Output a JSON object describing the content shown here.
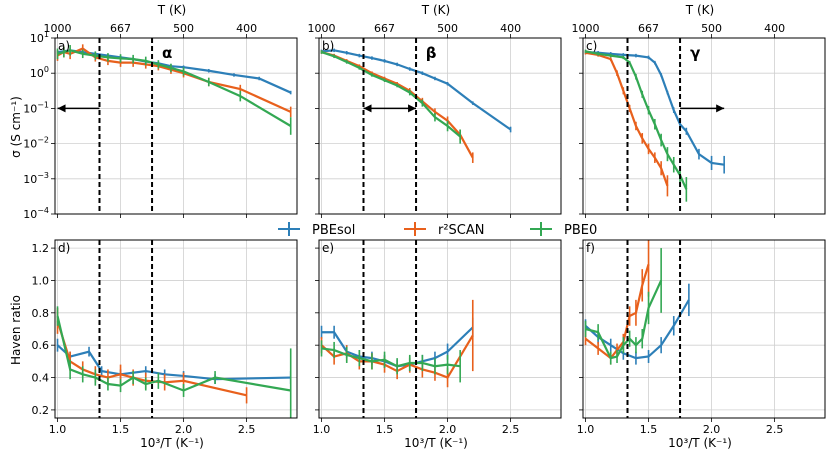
{
  "legend": [
    {
      "label": "PBEsol",
      "color": "#2d7fb8"
    },
    {
      "label": "r²SCAN",
      "color": "#e8601c"
    },
    {
      "label": "PBE0",
      "color": "#33a853"
    }
  ],
  "axis_text": {
    "top_xlabel": "T (K)",
    "bottom_xlabel": "10³/T (K⁻¹)",
    "top_ylabel": "σ (S cm⁻¹)",
    "bottom_ylabel": "Haven ratio"
  },
  "chart_data": [
    {
      "type": "line",
      "id": "a",
      "panel_label": "a)",
      "phase_label": "α",
      "row": "top",
      "col": 0,
      "xlim": [
        0.98,
        2.9
      ],
      "ylim": [
        -4,
        1
      ],
      "yscale": "log",
      "vlines": [
        1.333,
        1.75
      ],
      "arrow": {
        "from": 1.333,
        "to": 1.0,
        "y": -1
      },
      "top_ticks": [
        {
          "value": 1000,
          "pos": 1.0
        },
        {
          "value": 667,
          "pos": 1.5
        },
        {
          "value": 500,
          "pos": 2.0
        },
        {
          "value": 400,
          "pos": 2.5
        }
      ],
      "series": [
        {
          "name": "PBEsol",
          "x": [
            1.0,
            1.1,
            1.2,
            1.3,
            1.4,
            1.5,
            1.6,
            1.7,
            1.8,
            1.9,
            2.0,
            2.2,
            2.4,
            2.6,
            2.85
          ],
          "y": [
            0.6,
            0.65,
            0.6,
            0.55,
            0.5,
            0.45,
            0.4,
            0.33,
            0.28,
            0.2,
            0.17,
            0.07,
            -0.05,
            -0.15,
            -0.55
          ],
          "err": [
            0.05,
            0.05,
            0.05,
            0.05,
            0.05,
            0.05,
            0.05,
            0.05,
            0.05,
            0.05,
            0.05,
            0.05,
            0.05,
            0.05,
            0.05
          ]
        },
        {
          "name": "r²SCAN",
          "x": [
            1.0,
            1.05,
            1.1,
            1.2,
            1.3,
            1.4,
            1.5,
            1.6,
            1.7,
            1.8,
            1.9,
            2.0,
            2.2,
            2.45,
            2.85
          ],
          "y": [
            0.5,
            0.6,
            0.55,
            0.7,
            0.45,
            0.35,
            0.3,
            0.3,
            0.25,
            0.2,
            0.1,
            0.0,
            -0.25,
            -0.45,
            -1.1
          ],
          "err": [
            0.15,
            0.15,
            0.15,
            0.12,
            0.12,
            0.12,
            0.12,
            0.12,
            0.12,
            0.12,
            0.12,
            0.12,
            0.12,
            0.12,
            0.15
          ]
        },
        {
          "name": "PBE0",
          "x": [
            1.0,
            1.05,
            1.1,
            1.2,
            1.3,
            1.4,
            1.5,
            1.6,
            1.7,
            1.8,
            1.9,
            2.0,
            2.2,
            2.45,
            2.85
          ],
          "y": [
            0.55,
            0.6,
            0.65,
            0.55,
            0.5,
            0.45,
            0.42,
            0.4,
            0.35,
            0.25,
            0.15,
            0.05,
            -0.25,
            -0.65,
            -1.5
          ],
          "err": [
            0.15,
            0.15,
            0.15,
            0.12,
            0.12,
            0.12,
            0.12,
            0.12,
            0.12,
            0.12,
            0.12,
            0.12,
            0.12,
            0.15,
            0.25
          ]
        }
      ]
    },
    {
      "type": "line",
      "id": "b",
      "panel_label": "b)",
      "phase_label": "β",
      "row": "top",
      "col": 1,
      "xlim": [
        0.98,
        2.9
      ],
      "ylim": [
        -4,
        1
      ],
      "yscale": "log",
      "vlines": [
        1.333,
        1.75
      ],
      "arrow": {
        "from": 1.333,
        "to": 1.75,
        "y": -1,
        "double": true
      },
      "top_ticks": [
        {
          "value": 1000,
          "pos": 1.0
        },
        {
          "value": 667,
          "pos": 1.5
        },
        {
          "value": 500,
          "pos": 2.0
        },
        {
          "value": 400,
          "pos": 2.5
        }
      ],
      "series": [
        {
          "name": "PBEsol",
          "x": [
            1.0,
            1.1,
            1.2,
            1.3,
            1.4,
            1.5,
            1.6,
            1.7,
            1.8,
            1.9,
            2.0,
            2.2,
            2.5
          ],
          "y": [
            0.62,
            0.65,
            0.58,
            0.5,
            0.43,
            0.35,
            0.25,
            0.12,
            0.0,
            -0.15,
            -0.3,
            -0.85,
            -1.6
          ],
          "err": [
            0.05,
            0.05,
            0.05,
            0.05,
            0.05,
            0.05,
            0.05,
            0.05,
            0.05,
            0.05,
            0.05,
            0.05,
            0.08
          ]
        },
        {
          "name": "r²SCAN",
          "x": [
            1.0,
            1.1,
            1.2,
            1.3,
            1.4,
            1.5,
            1.6,
            1.7,
            1.8,
            1.9,
            2.0,
            2.1,
            2.2
          ],
          "y": [
            0.6,
            0.5,
            0.35,
            0.2,
            0.0,
            -0.15,
            -0.3,
            -0.5,
            -0.8,
            -1.1,
            -1.35,
            -1.75,
            -2.4
          ],
          "err": [
            0.05,
            0.05,
            0.05,
            0.05,
            0.05,
            0.05,
            0.05,
            0.08,
            0.1,
            0.1,
            0.12,
            0.15,
            0.15
          ]
        },
        {
          "name": "PBE0",
          "x": [
            1.0,
            1.1,
            1.2,
            1.3,
            1.4,
            1.5,
            1.6,
            1.7,
            1.8,
            1.9,
            2.0,
            2.1
          ],
          "y": [
            0.6,
            0.48,
            0.32,
            0.15,
            -0.05,
            -0.2,
            -0.35,
            -0.55,
            -0.85,
            -1.25,
            -1.5,
            -1.8
          ],
          "err": [
            0.05,
            0.05,
            0.05,
            0.05,
            0.05,
            0.05,
            0.05,
            0.08,
            0.1,
            0.12,
            0.15,
            0.2
          ]
        }
      ]
    },
    {
      "type": "line",
      "id": "c",
      "panel_label": "c)",
      "phase_label": "γ",
      "row": "top",
      "col": 2,
      "xlim": [
        0.98,
        2.9
      ],
      "ylim": [
        -4,
        1
      ],
      "yscale": "log",
      "vlines": [
        1.333,
        1.75
      ],
      "arrow": {
        "from": 1.75,
        "to": 2.1,
        "y": -1
      },
      "top_ticks": [
        {
          "value": 1000,
          "pos": 1.0
        },
        {
          "value": 667,
          "pos": 1.5
        },
        {
          "value": 500,
          "pos": 2.0
        },
        {
          "value": 400,
          "pos": 2.5
        }
      ],
      "series": [
        {
          "name": "PBEsol",
          "x": [
            1.0,
            1.1,
            1.2,
            1.3,
            1.4,
            1.5,
            1.55,
            1.6,
            1.65,
            1.7,
            1.75,
            1.8,
            1.9,
            2.0,
            2.1
          ],
          "y": [
            0.6,
            0.58,
            0.55,
            0.52,
            0.5,
            0.45,
            0.3,
            -0.05,
            -0.55,
            -1.05,
            -1.45,
            -1.65,
            -2.3,
            -2.55,
            -2.6
          ],
          "err": [
            0.05,
            0.05,
            0.05,
            0.05,
            0.05,
            0.05,
            0.05,
            0.05,
            0.05,
            0.08,
            0.1,
            0.1,
            0.15,
            0.2,
            0.25
          ]
        },
        {
          "name": "r²SCAN",
          "x": [
            1.0,
            1.1,
            1.2,
            1.25,
            1.3,
            1.35,
            1.4,
            1.45,
            1.5,
            1.55,
            1.6,
            1.65
          ],
          "y": [
            0.58,
            0.52,
            0.4,
            0.0,
            -0.5,
            -1.0,
            -1.5,
            -1.85,
            -2.15,
            -2.4,
            -2.7,
            -3.2
          ],
          "err": [
            0.05,
            0.05,
            0.05,
            0.08,
            0.1,
            0.1,
            0.12,
            0.15,
            0.15,
            0.15,
            0.2,
            0.3
          ]
        },
        {
          "name": "PBE0",
          "x": [
            1.0,
            1.1,
            1.2,
            1.3,
            1.35,
            1.4,
            1.45,
            1.5,
            1.55,
            1.6,
            1.65,
            1.7,
            1.75,
            1.8
          ],
          "y": [
            0.62,
            0.55,
            0.5,
            0.45,
            0.3,
            -0.1,
            -0.6,
            -1.05,
            -1.45,
            -1.9,
            -2.3,
            -2.6,
            -2.9,
            -3.3
          ],
          "err": [
            0.05,
            0.05,
            0.05,
            0.05,
            0.05,
            0.08,
            0.1,
            0.12,
            0.15,
            0.18,
            0.2,
            0.22,
            0.25,
            0.35
          ]
        }
      ]
    },
    {
      "type": "line",
      "id": "d",
      "panel_label": "d)",
      "row": "bottom",
      "col": 0,
      "xlim": [
        0.98,
        2.9
      ],
      "ylim": [
        0.15,
        1.25
      ],
      "vlines": [
        1.333,
        1.75
      ],
      "series": [
        {
          "name": "PBEsol",
          "x": [
            1.0,
            1.1,
            1.25,
            1.35,
            1.5,
            1.7,
            1.85,
            2.0,
            2.25,
            2.85
          ],
          "y": [
            0.6,
            0.53,
            0.56,
            0.44,
            0.42,
            0.44,
            0.42,
            0.41,
            0.39,
            0.4
          ],
          "err": [
            0.04,
            0.03,
            0.03,
            0.03,
            0.03,
            0.03,
            0.03,
            0.03,
            0.03,
            0.04
          ]
        },
        {
          "name": "r²SCAN",
          "x": [
            1.0,
            1.1,
            1.2,
            1.3,
            1.4,
            1.5,
            1.6,
            1.7,
            1.85,
            2.0,
            2.5
          ],
          "y": [
            0.75,
            0.5,
            0.45,
            0.42,
            0.4,
            0.42,
            0.4,
            0.38,
            0.37,
            0.38,
            0.29
          ],
          "err": [
            0.08,
            0.06,
            0.05,
            0.05,
            0.05,
            0.06,
            0.05,
            0.05,
            0.05,
            0.05,
            0.05
          ]
        },
        {
          "name": "PBE0",
          "x": [
            1.0,
            1.1,
            1.2,
            1.3,
            1.4,
            1.5,
            1.6,
            1.7,
            1.8,
            2.0,
            2.25,
            2.85
          ],
          "y": [
            0.78,
            0.45,
            0.42,
            0.4,
            0.36,
            0.35,
            0.4,
            0.36,
            0.38,
            0.32,
            0.4,
            0.32
          ],
          "err": [
            0.06,
            0.06,
            0.05,
            0.05,
            0.04,
            0.04,
            0.04,
            0.04,
            0.05,
            0.04,
            0.04,
            0.26
          ]
        }
      ]
    },
    {
      "type": "line",
      "id": "e",
      "panel_label": "e)",
      "row": "bottom",
      "col": 1,
      "xlim": [
        0.98,
        2.9
      ],
      "ylim": [
        0.15,
        1.25
      ],
      "vlines": [
        1.333,
        1.75
      ],
      "series": [
        {
          "name": "PBEsol",
          "x": [
            1.0,
            1.1,
            1.2,
            1.3,
            1.4,
            1.5,
            1.6,
            1.7,
            1.8,
            1.9,
            2.0,
            2.2
          ],
          "y": [
            0.68,
            0.68,
            0.56,
            0.53,
            0.52,
            0.5,
            0.47,
            0.48,
            0.5,
            0.52,
            0.56,
            0.71
          ],
          "err": [
            0.04,
            0.04,
            0.04,
            0.04,
            0.04,
            0.04,
            0.04,
            0.04,
            0.04,
            0.04,
            0.05,
            0.06
          ]
        },
        {
          "name": "r²SCAN",
          "x": [
            1.0,
            1.1,
            1.2,
            1.3,
            1.4,
            1.5,
            1.6,
            1.7,
            1.8,
            1.9,
            2.0,
            2.2
          ],
          "y": [
            0.6,
            0.53,
            0.55,
            0.5,
            0.5,
            0.48,
            0.44,
            0.48,
            0.45,
            0.43,
            0.4,
            0.66
          ],
          "err": [
            0.05,
            0.05,
            0.05,
            0.05,
            0.05,
            0.05,
            0.05,
            0.05,
            0.05,
            0.05,
            0.06,
            0.22
          ]
        },
        {
          "name": "PBE0",
          "x": [
            1.0,
            1.1,
            1.2,
            1.3,
            1.4,
            1.5,
            1.6,
            1.7,
            1.8,
            1.9,
            2.0,
            2.1
          ],
          "y": [
            0.58,
            0.57,
            0.54,
            0.52,
            0.5,
            0.51,
            0.47,
            0.49,
            0.49,
            0.47,
            0.48,
            0.47
          ],
          "err": [
            0.05,
            0.05,
            0.05,
            0.05,
            0.05,
            0.05,
            0.05,
            0.05,
            0.05,
            0.05,
            0.06,
            0.1
          ]
        }
      ]
    },
    {
      "type": "line",
      "id": "f",
      "panel_label": "f)",
      "row": "bottom",
      "col": 2,
      "xlim": [
        0.98,
        2.9
      ],
      "ylim": [
        0.15,
        1.25
      ],
      "vlines": [
        1.333,
        1.75
      ],
      "series": [
        {
          "name": "PBEsol",
          "x": [
            1.0,
            1.1,
            1.2,
            1.3,
            1.4,
            1.5,
            1.6,
            1.7,
            1.82
          ],
          "y": [
            0.72,
            0.65,
            0.6,
            0.55,
            0.52,
            0.53,
            0.6,
            0.72,
            0.88
          ],
          "err": [
            0.04,
            0.04,
            0.04,
            0.04,
            0.04,
            0.04,
            0.05,
            0.06,
            0.1
          ]
        },
        {
          "name": "r²SCAN",
          "x": [
            1.0,
            1.1,
            1.2,
            1.25,
            1.3,
            1.35,
            1.4,
            1.45,
            1.5
          ],
          "y": [
            0.64,
            0.58,
            0.52,
            0.57,
            0.62,
            0.78,
            0.8,
            0.97,
            1.1
          ],
          "err": [
            0.04,
            0.04,
            0.04,
            0.04,
            0.05,
            0.06,
            0.08,
            0.1,
            0.2
          ]
        },
        {
          "name": "PBE0",
          "x": [
            1.0,
            1.1,
            1.2,
            1.25,
            1.3,
            1.35,
            1.4,
            1.45,
            1.5,
            1.6
          ],
          "y": [
            0.7,
            0.68,
            0.52,
            0.53,
            0.6,
            0.64,
            0.6,
            0.64,
            0.83,
            1.0
          ],
          "err": [
            0.05,
            0.05,
            0.04,
            0.04,
            0.05,
            0.05,
            0.05,
            0.06,
            0.1,
            0.2
          ]
        }
      ]
    }
  ]
}
